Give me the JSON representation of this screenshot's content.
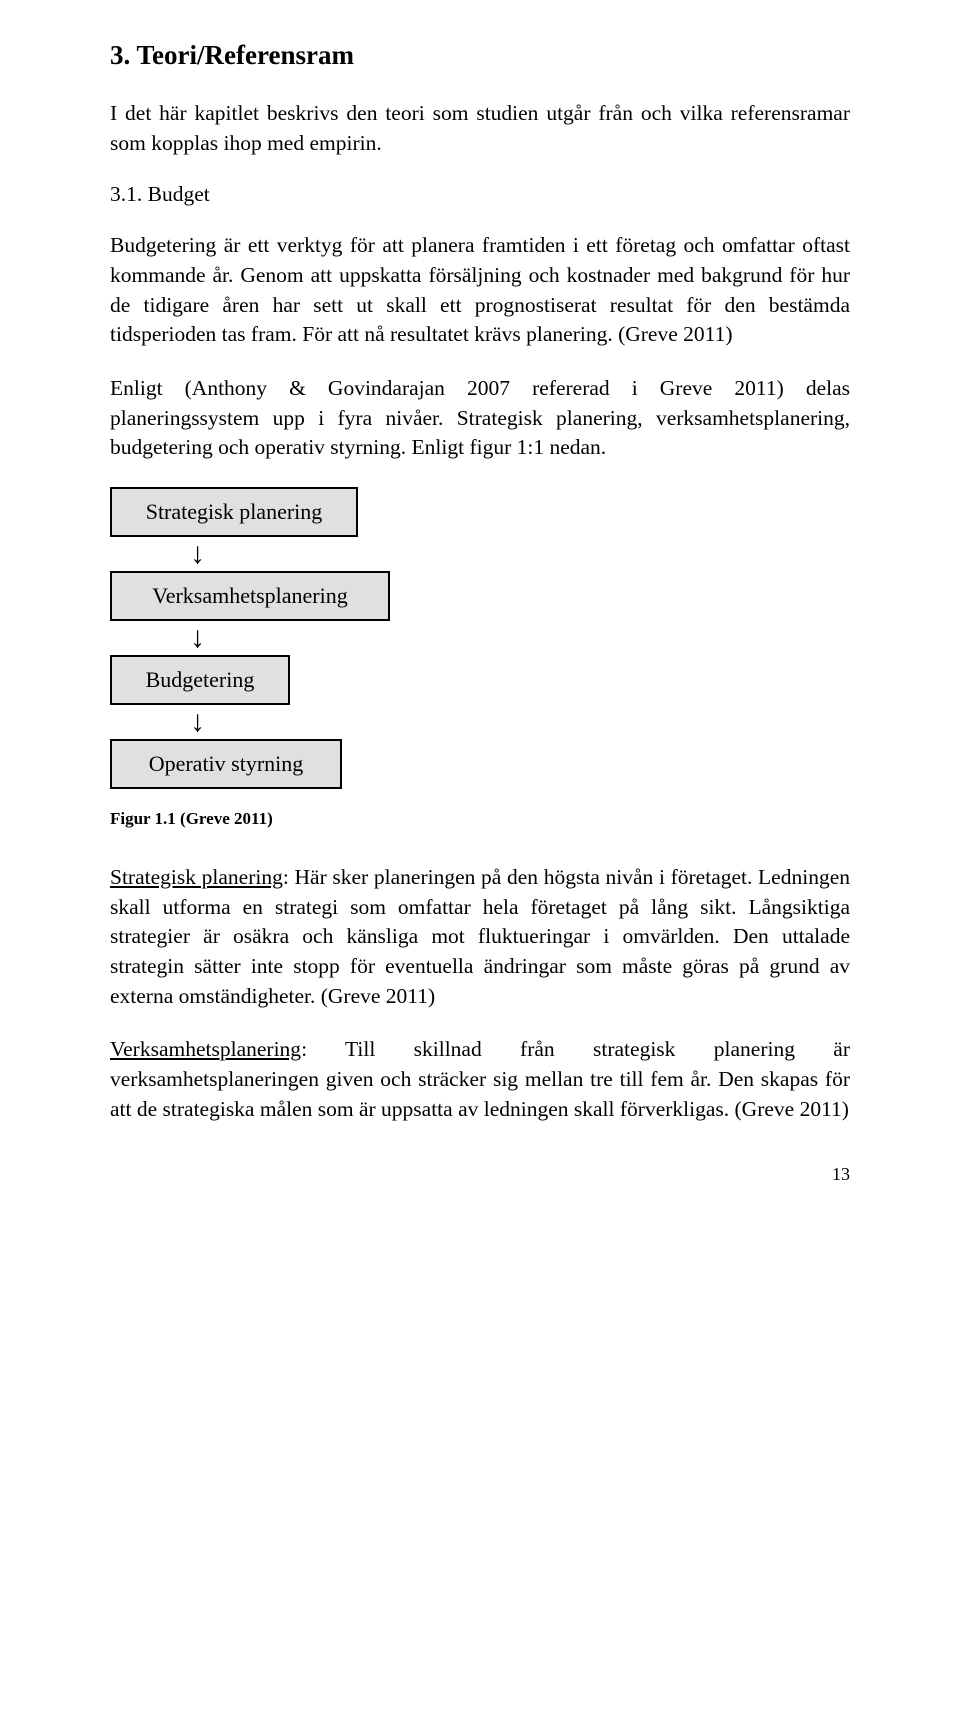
{
  "heading": "3. Teori/Referensram",
  "intro": "I det här kapitlet beskrivs den teori som studien utgår från och vilka referensramar som kopplas ihop med empirin.",
  "sub_heading": "3.1. Budget",
  "para1": "Budgetering är ett verktyg för att planera framtiden i ett företag och omfattar oftast kommande år. Genom att uppskatta försäljning och kostnader med bakgrund för hur de tidigare åren har sett ut skall ett prognostiserat resultat för den bestämda tidsperioden tas fram. För att nå resultatet krävs planering. (Greve 2011)",
  "para2": "Enligt (Anthony & Govindarajan 2007 refererad i Greve 2011) delas planeringssystem upp i fyra nivåer. Strategisk planering, verksamhetsplanering, budgetering och operativ styrning. Enligt figur 1:1 nedan.",
  "flowchart": {
    "boxes": [
      "Strategisk planering",
      "Verksamhetsplanering",
      "Budgetering",
      "Operativ styrning"
    ],
    "arrow_glyph": "↓",
    "box_bg": "#e0e0e0",
    "box_border": "#000000"
  },
  "fig_caption": "Figur 1.1 (Greve 2011)",
  "def1_label": "Strategisk planering",
  "def1_text": ": Här sker planeringen på den högsta nivån i företaget. Ledningen skall utforma en strategi som omfattar hela företaget på lång sikt. Långsiktiga strategier är osäkra och känsliga mot fluktueringar i omvärlden. Den uttalade strategin sätter inte stopp för eventuella ändringar som måste göras på grund av externa omständigheter. (Greve 2011)",
  "def2_label": "Verksamhetsplanering",
  "def2_text": ": Till skillnad från strategisk planering är verksamhetsplaneringen given och sträcker sig mellan tre till fem år. Den skapas för att de strategiska målen som är uppsatta av ledningen skall förverkligas. (Greve 2011)",
  "page_number": "13"
}
